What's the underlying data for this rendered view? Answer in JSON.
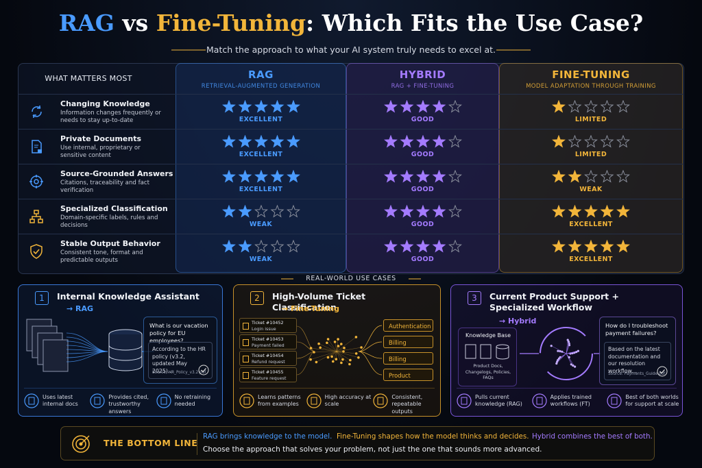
{
  "title": {
    "rag": "RAG",
    "vs": "vs",
    "ft": "Fine-Tuning",
    "rest": ": Which Fits the Use Case?"
  },
  "subtitle": "Match the approach to what your AI system truly needs to excel at.",
  "table": {
    "corner": "WHAT MATTERS MOST",
    "stars_out_of": 5,
    "columns": [
      {
        "name": "RAG",
        "subtitle": "RETRIEVAL-AUGMENTED GENERATION",
        "color": "#4a9bff"
      },
      {
        "name": "HYBRID",
        "subtitle": "RAG + FINE-TUNING",
        "color": "#a47bff"
      },
      {
        "name": "FINE-TUNING",
        "subtitle": "MODEL ADAPTATION THROUGH TRAINING",
        "color": "#f2b53a"
      }
    ],
    "rows": [
      {
        "title": "Changing Knowledge",
        "description": "Information changes frequently or needs to stay up-to-date",
        "ratings": [
          {
            "stars": 5,
            "label": "EXCELLENT"
          },
          {
            "stars": 4,
            "label": "GOOD"
          },
          {
            "stars": 1,
            "label": "LIMITED"
          }
        ]
      },
      {
        "title": "Private Documents",
        "description": "Use internal, proprietary or sensitive content",
        "ratings": [
          {
            "stars": 5,
            "label": "EXCELLENT"
          },
          {
            "stars": 4,
            "label": "GOOD"
          },
          {
            "stars": 1,
            "label": "LIMITED"
          }
        ]
      },
      {
        "title": "Source-Grounded Answers",
        "description": "Citations, traceability and fact verification",
        "ratings": [
          {
            "stars": 5,
            "label": "EXCELLENT"
          },
          {
            "stars": 4,
            "label": "GOOD"
          },
          {
            "stars": 2,
            "label": "WEAK"
          }
        ]
      },
      {
        "title": "Specialized Classification",
        "description": "Domain-specific labels, rules and decisions",
        "ratings": [
          {
            "stars": 2,
            "label": "WEAK"
          },
          {
            "stars": 4,
            "label": "GOOD"
          },
          {
            "stars": 5,
            "label": "EXCELLENT"
          }
        ]
      },
      {
        "title": "Stable Output Behavior",
        "description": "Consistent tone, format and predictable outputs",
        "ratings": [
          {
            "stars": 2,
            "label": "WEAK"
          },
          {
            "stars": 4,
            "label": "GOOD"
          },
          {
            "stars": 5,
            "label": "EXCELLENT"
          }
        ]
      }
    ]
  },
  "use_cases": {
    "heading": "REAL-WORLD USE CASES",
    "cards": [
      {
        "number": "1",
        "title": "Internal Knowledge Assistant",
        "approach": "→ RAG",
        "question": "What is our vacation policy for EU employees?",
        "answer": "According to the HR policy (v3.2, updated May 2025)...",
        "source": "Source: HR_Policy_v3.2.pdf",
        "features": [
          "Uses latest internal docs",
          "Provides cited, trustworthy answers",
          "No retraining needed"
        ]
      },
      {
        "number": "2",
        "title": "High-Volume Ticket Classification",
        "approach": "→ Fine-Tuning",
        "tickets": [
          {
            "id": "Ticket #10452",
            "text": "Login issue"
          },
          {
            "id": "Ticket #10453",
            "text": "Payment failed"
          },
          {
            "id": "Ticket #10454",
            "text": "Refund request"
          },
          {
            "id": "Ticket #10455",
            "text": "Feature request"
          }
        ],
        "labels": [
          "Authentication",
          "Billing",
          "Billing",
          "Product"
        ],
        "features": [
          "Learns patterns from examples",
          "High accuracy at scale",
          "Consistent, repeatable outputs"
        ]
      },
      {
        "number": "3",
        "title": "Current Product Support + Specialized Workflow",
        "approach": "→ Hybrid",
        "kb_title": "Knowledge Base",
        "kb_description": "Product Docs, Changelogs, Policies, FAQs",
        "question": "How do I troubleshoot payment failures?",
        "answer": "Based on the latest documentation and our resolution workflow...",
        "source": "Source: Payments_Guide.pdf",
        "features": [
          "Pulls current knowledge (RAG)",
          "Applies trained workflows (FT)",
          "Best of both worlds for support at scale"
        ]
      }
    ]
  },
  "bottom_line": {
    "label": "THE BOTTOM LINE",
    "rag": "RAG brings knowledge to the model.",
    "ft": "Fine-Tuning shapes how the model thinks and decides.",
    "hybrid": "Hybrid combines the best of both.",
    "conclusion": "Choose the approach that solves your problem, not just the one that sounds more advanced."
  }
}
